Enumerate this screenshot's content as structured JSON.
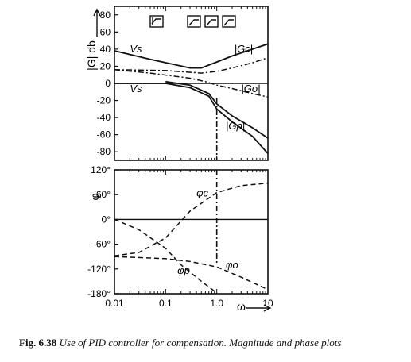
{
  "caption": {
    "number": "Fig. 6.38",
    "text": "Use of PID controller for compensation. Magnitude and phase plots"
  },
  "chart_data": [
    {
      "type": "line",
      "id": "magnitude",
      "ylabel": "|G| db",
      "xscale": "log",
      "xlim": [
        0.01,
        10
      ],
      "ylim": [
        -90,
        90
      ],
      "yticks": [
        80,
        60,
        40,
        20,
        0,
        -20,
        -40,
        -60,
        -80
      ],
      "ytick_labels": [
        "80",
        "60",
        "40",
        "20",
        "0",
        "-20",
        "-40",
        "-60",
        "-80"
      ],
      "grid": false,
      "annotations": [
        {
          "text": "Vs",
          "x": 0.02,
          "y": 36
        },
        {
          "text": "Vs",
          "x": 0.02,
          "y": -10
        },
        {
          "text": "|Gc|",
          "x": 2.2,
          "y": 36
        },
        {
          "text": "|Go|",
          "x": 3.0,
          "y": -10
        },
        {
          "text": "|Gp|",
          "x": 1.5,
          "y": -54
        }
      ],
      "series": [
        {
          "name": "|Gc|",
          "style": "solid",
          "x": [
            0.01,
            0.05,
            0.3,
            0.5,
            1,
            2,
            5,
            10
          ],
          "y": [
            38,
            28,
            18,
            18,
            25,
            32,
            40,
            46
          ]
        },
        {
          "name": "|Gp|",
          "style": "solid",
          "x": [
            0.01,
            0.1,
            0.3,
            0.7,
            1,
            2,
            5,
            10
          ],
          "y": [
            0,
            0,
            -5,
            -15,
            -30,
            -45,
            -62,
            -82
          ]
        },
        {
          "name": "|Go|",
          "style": "dashdot",
          "x": [
            0.01,
            0.05,
            0.3,
            0.6,
            1,
            2,
            5,
            10
          ],
          "y": [
            16,
            12,
            6,
            2,
            -2,
            -6,
            -12,
            -16
          ]
        },
        {
          "name": "",
          "style": "dashdot",
          "x": [
            0.01,
            0.1,
            0.5,
            1,
            2,
            5,
            10
          ],
          "y": [
            16,
            15,
            12,
            14,
            18,
            24,
            30
          ]
        },
        {
          "name": "",
          "style": "solid",
          "x": [
            0.1,
            0.3,
            0.7,
            1,
            2,
            5,
            10
          ],
          "y": [
            2,
            -2,
            -12,
            -24,
            -38,
            -52,
            -64
          ]
        }
      ]
    },
    {
      "type": "line",
      "id": "phase",
      "ylabel": "φ",
      "xlabel": "ω",
      "xscale": "log",
      "xlim": [
        0.01,
        10
      ],
      "ylim": [
        -180,
        120
      ],
      "xticks": [
        0.01,
        0.1,
        1.0,
        10
      ],
      "xtick_labels": [
        "0.01",
        "0.1",
        "1.0",
        "10"
      ],
      "yticks": [
        120,
        60,
        0,
        -60,
        -120,
        -180
      ],
      "ytick_labels": [
        "120°",
        "60°",
        "0°",
        "-60°",
        "-120°",
        "-180°"
      ],
      "grid": false,
      "annotations": [
        {
          "text": "φc",
          "x": 0.4,
          "y": 56
        },
        {
          "text": "φo",
          "x": 1.5,
          "y": -118
        },
        {
          "text": "φp",
          "x": 0.17,
          "y": -132
        }
      ],
      "series": [
        {
          "name": "φc",
          "style": "dashed",
          "x": [
            0.01,
            0.03,
            0.1,
            0.3,
            1,
            3,
            10
          ],
          "y": [
            -88,
            -80,
            -45,
            20,
            65,
            82,
            88
          ]
        },
        {
          "name": "φp",
          "style": "dashed",
          "x": [
            0.01,
            0.03,
            0.1,
            0.2,
            0.5,
            1
          ],
          "y": [
            0,
            -25,
            -70,
            -110,
            -150,
            -178
          ]
        },
        {
          "name": "φo",
          "style": "dashed",
          "x": [
            0.01,
            0.1,
            0.3,
            1,
            3,
            10
          ],
          "y": [
            -90,
            -95,
            -102,
            -115,
            -140,
            -170
          ]
        }
      ],
      "marker_x": 1.0
    }
  ]
}
